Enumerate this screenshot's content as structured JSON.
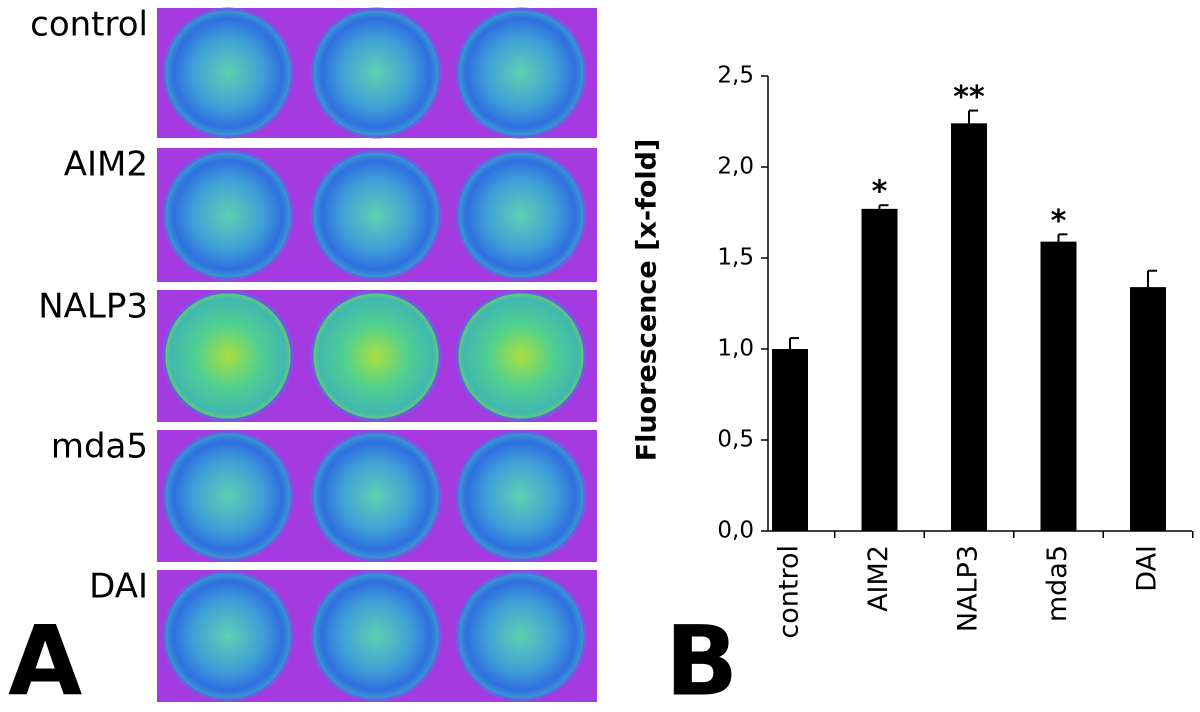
{
  "panel_a": {
    "label": "A",
    "rows": [
      "control",
      "AIM2",
      "NALP3",
      "mda5",
      "DAI"
    ]
  },
  "chart_data": {
    "type": "bar",
    "panel_label": "B",
    "y_label": "Fluorescence [x-fold]",
    "categories": [
      "control",
      "AIM2",
      "NALP3",
      "mda5",
      "DAI"
    ],
    "values": [
      1.0,
      1.77,
      2.24,
      1.59,
      1.34
    ],
    "errors": [
      0.06,
      0.02,
      0.07,
      0.04,
      0.09
    ],
    "value_annotations": [
      null,
      "*",
      "**",
      "*",
      null
    ],
    "color": "#000000",
    "ylim": [
      0,
      2.5
    ],
    "yticks": [
      {
        "value": 0,
        "label": "0,0"
      },
      {
        "value": 0.5,
        "label": "0,5"
      },
      {
        "value": 1,
        "label": "1,0"
      },
      {
        "value": 1.5,
        "label": "1,5"
      },
      {
        "value": 2,
        "label": "2,0"
      },
      {
        "value": 2.5,
        "label": "2,5"
      }
    ],
    "grid": false
  }
}
